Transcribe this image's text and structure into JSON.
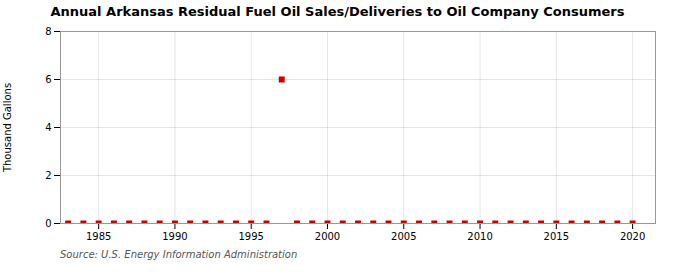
{
  "chart_data": {
    "type": "scatter",
    "title": "Annual Arkansas Residual Fuel Oil Sales/Deliveries to Oil Company Consumers",
    "ylabel": "Thousand Gallons",
    "annotations": [
      "Source: U.S. Energy Information Administration"
    ],
    "x": [
      1983,
      1984,
      1985,
      1986,
      1987,
      1988,
      1989,
      1990,
      1991,
      1992,
      1993,
      1994,
      1995,
      1996,
      1997,
      1998,
      1999,
      2000,
      2001,
      2002,
      2003,
      2004,
      2005,
      2006,
      2007,
      2008,
      2009,
      2010,
      2011,
      2012,
      2013,
      2014,
      2015,
      2016,
      2017,
      2018,
      2019,
      2020
    ],
    "values": [
      0,
      0,
      0,
      0,
      0,
      0,
      0,
      0,
      0,
      0,
      0,
      0,
      0,
      0,
      6.0,
      0,
      0,
      0,
      0,
      0,
      0,
      0,
      0,
      0,
      0,
      0,
      0,
      0,
      0,
      0,
      0,
      0,
      0,
      0,
      0,
      0,
      0,
      0
    ],
    "color": "#cc0000",
    "marker": "square",
    "xlim": [
      1982.5,
      2021.5
    ],
    "xticks": [
      1985,
      1990,
      1995,
      2000,
      2005,
      2010,
      2015,
      2020
    ],
    "ylim": [
      0,
      8
    ],
    "yticks": [
      0,
      2,
      4,
      6,
      8
    ],
    "grid": true
  }
}
